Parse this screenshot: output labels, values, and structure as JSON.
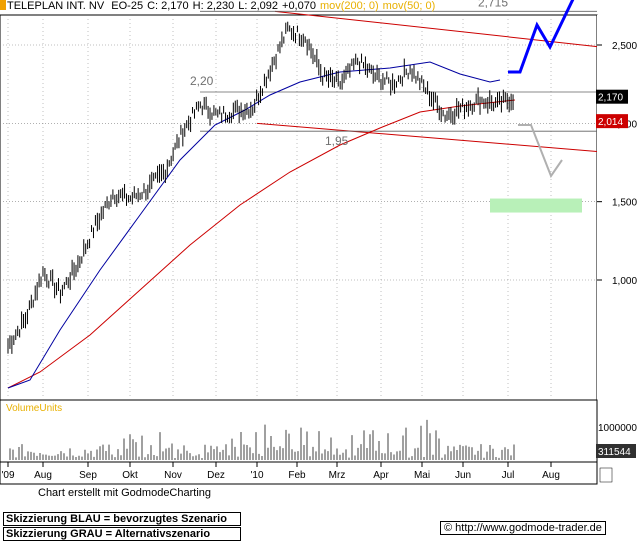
{
  "header": {
    "title": "TELEPLAN INT. NV",
    "exchange": "EO-25",
    "close": "C: 2,170",
    "high": "H: 2,230",
    "low": "L: 2,092",
    "change": "+0,070",
    "ma200": "mov(200; 0)",
    "ma50": "mov(50; 0)"
  },
  "chart_data": {
    "type": "line",
    "title": "TELEPLAN INT. NV",
    "price_axis_ticks": [
      "2,500",
      "2,000",
      "1,500",
      "1,000"
    ],
    "ylim": [
      0.45,
      2.7
    ],
    "x_tick_labels": [
      "'09",
      "Aug",
      "Sep",
      "Okt",
      "Nov",
      "Dez",
      "'10",
      "Feb",
      "Mrz",
      "Apr",
      "Mai",
      "Jun",
      "Jul",
      "Aug"
    ],
    "price_series": [
      {
        "date": "Jul 09",
        "value": 0.58
      },
      {
        "date": "Aug 09",
        "value": 0.75
      },
      {
        "date": "Aug 09",
        "value": 1.05
      },
      {
        "date": "Aug 09",
        "value": 0.92
      },
      {
        "date": "Sep 09",
        "value": 1.1
      },
      {
        "date": "Sep 09",
        "value": 1.35
      },
      {
        "date": "Sep 09",
        "value": 1.55
      },
      {
        "date": "Okt 09",
        "value": 1.52
      },
      {
        "date": "Okt 09",
        "value": 1.58
      },
      {
        "date": "Nov 09",
        "value": 1.7
      },
      {
        "date": "Nov 09",
        "value": 1.95
      },
      {
        "date": "Nov 09",
        "value": 2.12
      },
      {
        "date": "Dez 09",
        "value": 2.05
      },
      {
        "date": "Dez 09",
        "value": 2.08
      },
      {
        "date": "Dez 09",
        "value": 2.1
      },
      {
        "date": "Jan 10",
        "value": 2.35
      },
      {
        "date": "Jan 10",
        "value": 2.6
      },
      {
        "date": "Jan 10",
        "value": 2.55
      },
      {
        "date": "Feb 10",
        "value": 2.3
      },
      {
        "date": "Feb 10",
        "value": 2.25
      },
      {
        "date": "Mrz 10",
        "value": 2.4
      },
      {
        "date": "Mrz 10",
        "value": 2.3
      },
      {
        "date": "Apr 10",
        "value": 2.25
      },
      {
        "date": "Apr 10",
        "value": 2.35
      },
      {
        "date": "Mai 10",
        "value": 2.2
      },
      {
        "date": "Mai 10",
        "value": 2.05
      },
      {
        "date": "Mai 10",
        "value": 2.1
      },
      {
        "date": "Jun 10",
        "value": 2.15
      },
      {
        "date": "Jun 10",
        "value": 2.12
      },
      {
        "date": "Jul 10",
        "value": 2.17
      }
    ],
    "series": [
      {
        "name": "mov(50; 0)",
        "color": "#0000a0"
      },
      {
        "name": "mov(200; 0)",
        "color": "#cc0000"
      }
    ],
    "levels": [
      {
        "label": "2,715",
        "value": 2.715
      },
      {
        "label": "2,20",
        "value": 2.2
      },
      {
        "label": "1,95",
        "value": 1.95
      }
    ],
    "price_tags": [
      {
        "label": "2,170",
        "value": 2.17,
        "color": "#000000"
      },
      {
        "label": "2,014",
        "value": 2.014,
        "color": "#cc0000"
      }
    ],
    "volume": {
      "label": "VolumeUnits",
      "axis_ticks": [
        "1000000"
      ],
      "last": "311544"
    },
    "colors": {
      "price": "#000000",
      "ma50": "#0000a0",
      "ma200": "#cc0000",
      "scenario_blue": "#0000ff",
      "scenario_gray": "#b0b0b0",
      "target_zone": "#b8f0b8",
      "grid": "#808080"
    }
  },
  "footer": {
    "credit": "Chart erstellt mit GodmodeCharting",
    "note_blue": "Skizzierung BLAU = bevorzugtes Szenario",
    "note_gray": "Skizzierung GRAU = Alternativszenario",
    "url": "© http://www.godmode-trader.de"
  }
}
